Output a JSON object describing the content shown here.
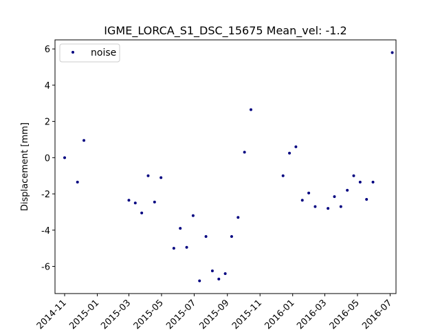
{
  "chart_data": {
    "type": "scatter",
    "title": "IGME_LORCA_S1_DSC_15675    Mean_vel: -1.2",
    "xlabel": "",
    "ylabel": "Displacement [mm]",
    "xlim": [
      "2014-10-14",
      "2016-07-12"
    ],
    "ylim": [
      -7.5,
      6.5
    ],
    "yticks": [
      -6,
      -4,
      -2,
      0,
      2,
      4,
      6
    ],
    "xticks": [
      "2014-11",
      "2015-01",
      "2015-03",
      "2015-05",
      "2015-07",
      "2015-09",
      "2015-11",
      "2016-01",
      "2016-03",
      "2016-05",
      "2016-07"
    ],
    "grid": false,
    "legend_placement": "top-left",
    "marker_color": "#000080",
    "series": [
      {
        "name": "noise",
        "points": [
          {
            "x": "2014-11-01",
            "y": 0.0
          },
          {
            "x": "2014-11-25",
            "y": -1.35
          },
          {
            "x": "2014-12-07",
            "y": 0.95
          },
          {
            "x": "2015-03-01",
            "y": -2.35
          },
          {
            "x": "2015-03-13",
            "y": -2.5
          },
          {
            "x": "2015-03-25",
            "y": -3.05
          },
          {
            "x": "2015-04-06",
            "y": -1.0
          },
          {
            "x": "2015-04-18",
            "y": -2.45
          },
          {
            "x": "2015-04-30",
            "y": -1.1
          },
          {
            "x": "2015-05-24",
            "y": -5.0
          },
          {
            "x": "2015-06-05",
            "y": -3.9
          },
          {
            "x": "2015-06-17",
            "y": -4.95
          },
          {
            "x": "2015-06-29",
            "y": -3.2
          },
          {
            "x": "2015-07-11",
            "y": -6.8
          },
          {
            "x": "2015-07-23",
            "y": -4.35
          },
          {
            "x": "2015-08-04",
            "y": -6.25
          },
          {
            "x": "2015-08-16",
            "y": -6.7
          },
          {
            "x": "2015-08-28",
            "y": -6.4
          },
          {
            "x": "2015-09-09",
            "y": -4.35
          },
          {
            "x": "2015-09-21",
            "y": -3.3
          },
          {
            "x": "2015-10-03",
            "y": 0.3
          },
          {
            "x": "2015-10-15",
            "y": 2.65
          },
          {
            "x": "2015-12-14",
            "y": -1.0
          },
          {
            "x": "2015-12-26",
            "y": 0.25
          },
          {
            "x": "2016-01-07",
            "y": 0.6
          },
          {
            "x": "2016-01-19",
            "y": -2.35
          },
          {
            "x": "2016-01-31",
            "y": -1.95
          },
          {
            "x": "2016-02-12",
            "y": -2.7
          },
          {
            "x": "2016-03-07",
            "y": -2.8
          },
          {
            "x": "2016-03-19",
            "y": -2.15
          },
          {
            "x": "2016-03-31",
            "y": -2.7
          },
          {
            "x": "2016-04-12",
            "y": -1.8
          },
          {
            "x": "2016-04-24",
            "y": -1.0
          },
          {
            "x": "2016-05-06",
            "y": -1.35
          },
          {
            "x": "2016-05-18",
            "y": -2.3
          },
          {
            "x": "2016-05-30",
            "y": -1.35
          },
          {
            "x": "2016-07-05",
            "y": 5.8
          }
        ]
      }
    ]
  }
}
